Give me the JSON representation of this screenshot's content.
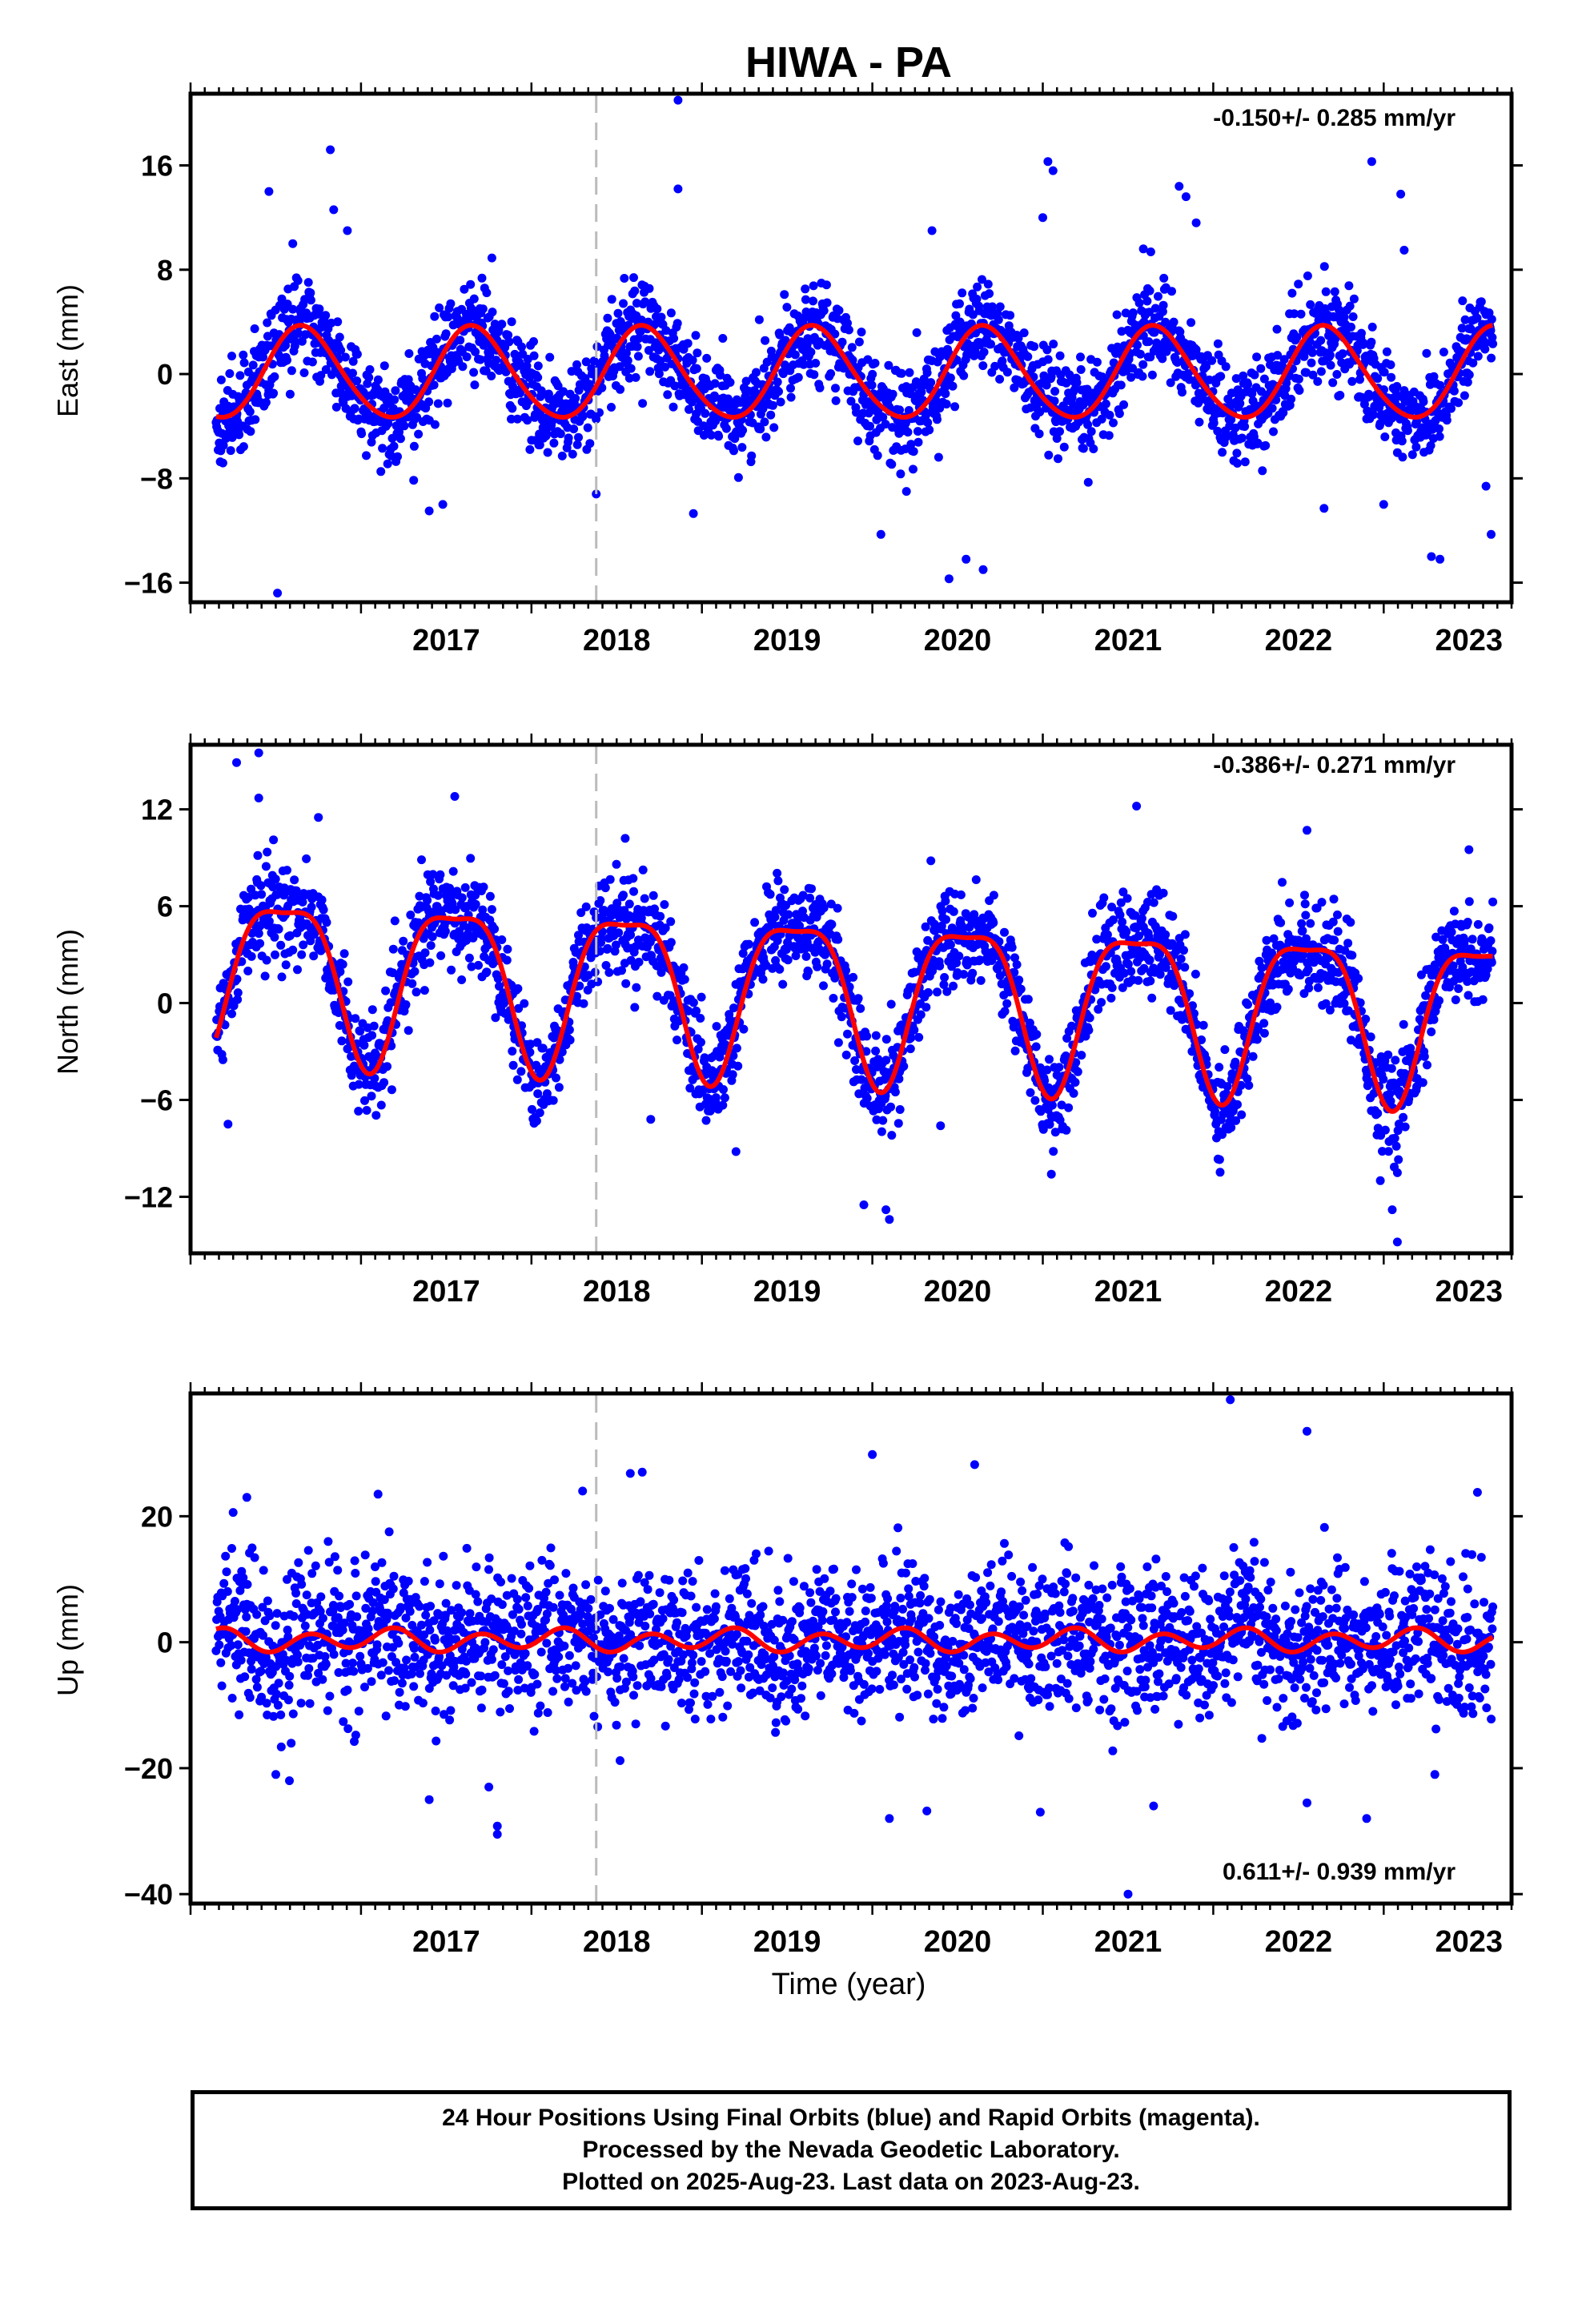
{
  "title": "HIWA - PA",
  "xlabel": "Time (year)",
  "footer": [
    "24 Hour Positions Using Final Orbits (blue) and Rapid Orbits (magenta).",
    "Processed by the Nevada Geodetic Laboratory.",
    "Plotted on 2025-Aug-23. Last data on 2023-Aug-23."
  ],
  "colors": {
    "points": "#0000ff",
    "model": "#ff0000",
    "breakline": "#bbbbbb",
    "frame": "#000000"
  },
  "chart_data": [
    {
      "type": "scatter",
      "panel": "east",
      "ylabel": "East (mm)",
      "rate_text": "-0.150+/- 0.285 mm/yr",
      "xlim": [
        2016.0,
        2023.75
      ],
      "ylim": [
        -17.5,
        21.5
      ],
      "yticks": [
        -16,
        -8,
        0,
        8,
        16
      ],
      "xticks": [
        2017,
        2018,
        2019,
        2020,
        2021,
        2022,
        2023
      ],
      "break_x": 2018.38,
      "model": {
        "mean": 0.0,
        "annual_amp": 3.5,
        "annual_phase": 0.66,
        "semiannual_amp": 0.3,
        "semiannual_phase": 0.1,
        "noise_sd": 1.8
      },
      "series": [
        {
          "name": "Final Orbits (blue)",
          "x_range": [
            2016.15,
            2023.64
          ],
          "n_points": 2450
        },
        {
          "name": "model"
        }
      ],
      "outliers": [
        [
          2016.46,
          14.0
        ],
        [
          2016.82,
          17.2
        ],
        [
          2016.84,
          12.6
        ],
        [
          2016.6,
          10.0
        ],
        [
          2016.92,
          11.0
        ],
        [
          2016.51,
          -16.8
        ],
        [
          2018.6,
          7.4
        ],
        [
          2018.86,
          21.0
        ],
        [
          2018.86,
          14.2
        ],
        [
          2018.95,
          -10.7
        ],
        [
          2020.45,
          -15.7
        ],
        [
          2020.05,
          -12.3
        ],
        [
          2020.65,
          -15.0
        ],
        [
          2020.55,
          -14.2
        ],
        [
          2020.2,
          -9.0
        ],
        [
          2020.35,
          11.0
        ],
        [
          2021.03,
          16.3
        ],
        [
          2021.06,
          15.6
        ],
        [
          2021.0,
          12.0
        ],
        [
          2021.59,
          9.6
        ],
        [
          2021.8,
          14.4
        ],
        [
          2021.84,
          13.6
        ],
        [
          2021.9,
          11.6
        ],
        [
          2022.65,
          -10.3
        ],
        [
          2022.93,
          16.3
        ],
        [
          2023.0,
          -10.0
        ],
        [
          2023.1,
          13.8
        ],
        [
          2023.12,
          9.5
        ],
        [
          2023.28,
          -14.0
        ],
        [
          2023.33,
          -14.2
        ],
        [
          2023.63,
          -12.3
        ],
        [
          2023.6,
          -8.6
        ],
        [
          2018.38,
          -9.2
        ],
        [
          2017.4,
          -10.5
        ],
        [
          2017.48,
          -10.0
        ]
      ]
    },
    {
      "type": "scatter",
      "panel": "north",
      "ylabel": "North (mm)",
      "rate_text": "-0.386+/- 0.271 mm/yr",
      "xlim": [
        2016.0,
        2023.75
      ],
      "ylim": [
        -15.5,
        16.0
      ],
      "yticks": [
        -12,
        -6,
        0,
        6,
        12
      ],
      "xticks": [
        2017,
        2018,
        2019,
        2020,
        2021,
        2022,
        2023
      ],
      "break_x": 2018.38,
      "model": {
        "mean": 0.8,
        "annual_amp": 4.9,
        "annual_phase": 0.55,
        "semiannual_amp": 1.4,
        "semiannual_phase": 0.3,
        "noise_sd": 1.5,
        "trend": -0.386
      },
      "series": [
        {
          "name": "Final Orbits (blue)",
          "x_range": [
            2016.15,
            2023.64
          ],
          "n_points": 2450
        },
        {
          "name": "model"
        }
      ],
      "outliers": [
        [
          2016.27,
          14.9
        ],
        [
          2016.4,
          15.5
        ],
        [
          2016.4,
          12.7
        ],
        [
          2016.22,
          -7.5
        ],
        [
          2016.75,
          11.5
        ],
        [
          2017.55,
          12.8
        ],
        [
          2018.55,
          10.2
        ],
        [
          2018.7,
          -7.2
        ],
        [
          2019.2,
          -9.2
        ],
        [
          2019.95,
          -12.5
        ],
        [
          2020.08,
          -12.8
        ],
        [
          2020.1,
          -13.4
        ],
        [
          2021.05,
          -10.6
        ],
        [
          2021.55,
          12.2
        ],
        [
          2022.55,
          10.7
        ],
        [
          2022.98,
          -11.0
        ],
        [
          2023.05,
          -12.8
        ],
        [
          2023.08,
          -14.8
        ],
        [
          2023.5,
          9.5
        ],
        [
          2020.4,
          -7.6
        ]
      ]
    },
    {
      "type": "scatter",
      "panel": "up",
      "ylabel": "Up (mm)",
      "rate_text": "0.611+/- 0.939 mm/yr",
      "xlim": [
        2016.0,
        2023.75
      ],
      "ylim": [
        -41.5,
        39.5
      ],
      "yticks": [
        -40,
        -20,
        0,
        20
      ],
      "xticks": [
        2017,
        2018,
        2019,
        2020,
        2021,
        2022,
        2023
      ],
      "break_x": 2018.38,
      "model": {
        "mean": 0.3,
        "annual_amp": 0.6,
        "annual_phase": 0.1,
        "semiannual_amp": 1.5,
        "semiannual_phase": 0.2,
        "noise_sd": 5.5
      },
      "series": [
        {
          "name": "Final Orbits (blue)",
          "x_range": [
            2016.15,
            2023.64
          ],
          "n_points": 2450
        },
        {
          "name": "model"
        }
      ],
      "outliers": [
        [
          2016.33,
          23.0
        ],
        [
          2016.25,
          20.6
        ],
        [
          2016.5,
          -21.0
        ],
        [
          2016.58,
          -22.0
        ],
        [
          2017.1,
          23.5
        ],
        [
          2017.4,
          -25.0
        ],
        [
          2017.8,
          -30.5
        ],
        [
          2017.8,
          -29.2
        ],
        [
          2017.75,
          -23.0
        ],
        [
          2018.3,
          24.0
        ],
        [
          2018.58,
          26.8
        ],
        [
          2018.65,
          27.0
        ],
        [
          2018.52,
          -18.8
        ],
        [
          2020.0,
          29.8
        ],
        [
          2020.1,
          -28.0
        ],
        [
          2020.6,
          28.2
        ],
        [
          2020.32,
          -26.8
        ],
        [
          2021.5,
          -40.0
        ],
        [
          2021.65,
          -26.0
        ],
        [
          2022.1,
          38.5
        ],
        [
          2022.55,
          33.5
        ],
        [
          2022.55,
          -25.5
        ],
        [
          2022.9,
          -28.0
        ],
        [
          2023.55,
          23.8
        ],
        [
          2023.3,
          -21.0
        ]
      ]
    }
  ]
}
